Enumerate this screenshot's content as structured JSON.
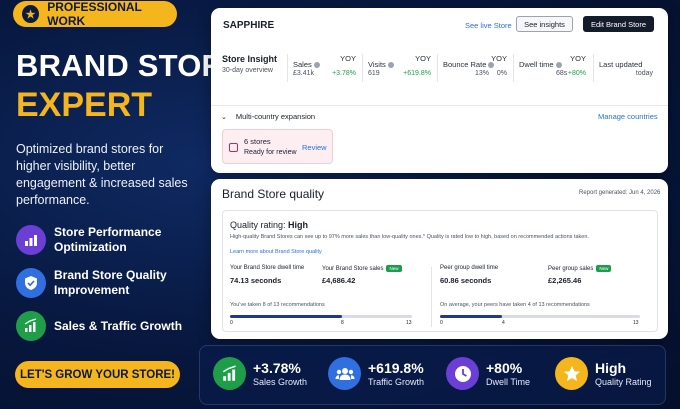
{
  "badge": {
    "label": "PROFESSIONAL WORK",
    "icon": "star-icon"
  },
  "hero": {
    "title_line1": "BRAND STORE",
    "title_line2": "EXPERT",
    "subtitle": "Optimized brand stores for higher visibility, better engagement & increased sales performance."
  },
  "features": [
    {
      "label": "Store Performance Optimization",
      "icon": "bar-chart-icon",
      "color": "#6b3fd6"
    },
    {
      "label": "Brand Store Quality Improvement",
      "icon": "shield-icon",
      "color": "#2f6fe0"
    },
    {
      "label": "Sales & Traffic Growth",
      "icon": "growth-chart-icon",
      "color": "#1f9e4a"
    }
  ],
  "cta": {
    "label": "LET'S GROW YOUR STORE!"
  },
  "store_card": {
    "brand": "SAPPHIRE",
    "see_live": "See live Store",
    "see_insights": "See insights",
    "edit": "Edit Brand Store",
    "insight_title": "Store Insight",
    "insight_sub": "30-day overview",
    "yoy_label": "YOY",
    "metrics": [
      {
        "label": "Sales",
        "value": "£3.41k",
        "change": "+3.78%",
        "up": true
      },
      {
        "label": "Visits",
        "value": "619",
        "change": "+619.8%",
        "up": true
      },
      {
        "label": "Bounce Rate",
        "value": "13%",
        "change": "0%",
        "up": false
      },
      {
        "label": "Dwell time",
        "value": "68s",
        "change": "+80%",
        "up": true
      },
      {
        "label": "Last updated",
        "value": "",
        "change": "today",
        "up": false
      }
    ],
    "expansion": "Multi-country expansion",
    "manage": "Manage countries",
    "stores_count": "6 stores",
    "stores_status": "Ready for review",
    "review": "Review"
  },
  "quality_card": {
    "title": "Brand Store quality",
    "generated": "Report generated: Jun 4, 2026",
    "rating_prefix": "Quality rating:",
    "rating": "High",
    "desc": "High-quality Brand Stores can see up to 97% more sales than low-quality ones.* Quality is rated low to high, based on recommended actions taken.",
    "learn_more": "Learn more about Brand Store quality",
    "new_badge": "New",
    "yours": {
      "dwell_label": "Your Brand Store dwell time",
      "dwell_value": "74.13 seconds",
      "sales_label": "Your Brand Store sales",
      "sales_value": "£4,686.42",
      "note": "You've taken 8 of 13 recommendations",
      "progress": 0.615,
      "tick_start": "0",
      "tick_mid": "8",
      "tick_end": "13"
    },
    "peers": {
      "dwell_label": "Peer group dwell time",
      "dwell_value": "60.86 seconds",
      "sales_label": "Peer group sales",
      "sales_value": "£2,265.46",
      "note": "On average, your peers have taken 4 of 13 recommendations",
      "progress": 0.31,
      "tick_start": "0",
      "tick_mid": "4",
      "tick_end": "13"
    }
  },
  "stats": [
    {
      "value": "+3.78%",
      "label": "Sales Growth",
      "icon": "growth-chart-icon",
      "color": "#1f9e4a"
    },
    {
      "value": "+619.8%",
      "label": "Traffic Growth",
      "icon": "users-icon",
      "color": "#2f6fe0"
    },
    {
      "value": "+80%",
      "label": "Dwell Time",
      "icon": "clock-icon",
      "color": "#6b3fd6"
    },
    {
      "value": "High",
      "label": "Quality Rating",
      "icon": "star-icon",
      "color": "#f5b51d"
    }
  ]
}
